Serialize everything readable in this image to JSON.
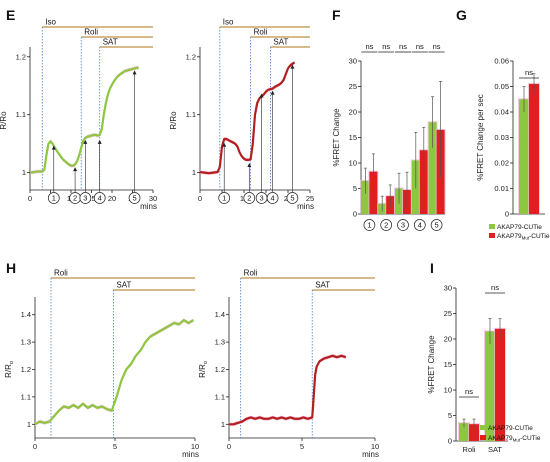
{
  "colors": {
    "akap79": "#8dc63f",
    "akap79_mut": "#b41e1e",
    "akap79_mut_bar": "#e02020",
    "treatment_line": "#c8a464",
    "dotted_line": "#4a7fd4",
    "sem_band": "#f4b6d8"
  },
  "panels": {
    "E": {
      "letter": "E"
    },
    "F": {
      "letter": "F"
    },
    "G": {
      "letter": "G"
    },
    "H": {
      "letter": "H"
    },
    "I": {
      "letter": "I"
    }
  },
  "legend": {
    "wt": "AKAP79-CUTie",
    "mut": "AKAP79",
    "mut_sub": "Mut",
    "mut_suffix": "-CUTie"
  },
  "chart_data": [
    {
      "id": "E-left",
      "type": "line",
      "xlabel": "mins",
      "ylabel": "R/Ro",
      "xlim": [
        0,
        30
      ],
      "ylim": [
        0.97,
        1.21
      ],
      "xticks": [
        0,
        5,
        10,
        15,
        20,
        25,
        30
      ],
      "yticks": [
        1,
        1.1,
        1.2
      ],
      "treatments": [
        {
          "label": "Iso",
          "start": 3
        },
        {
          "label": "Roli",
          "start": 12.5
        },
        {
          "label": "SAT",
          "start": 17
        }
      ],
      "phases": [
        {
          "label": "1",
          "x": 5.8,
          "y": 1.05
        },
        {
          "label": "2",
          "x": 11,
          "y": 1.013
        },
        {
          "label": "3",
          "x": 13.5,
          "y": 1.06
        },
        {
          "label": "4",
          "x": 17,
          "y": 1.06
        },
        {
          "label": "5",
          "x": 25.5,
          "y": 1.18
        }
      ],
      "series": [
        {
          "color": "#8dc63f",
          "x": [
            0,
            1,
            2,
            3,
            3.5,
            4,
            4.5,
            5,
            5.5,
            6,
            6.5,
            7,
            7.5,
            8,
            8.5,
            9,
            9.5,
            10,
            10.5,
            11,
            11.5,
            12,
            12.5,
            13,
            13.5,
            14,
            14.5,
            15,
            15.5,
            16,
            16.5,
            17,
            17.5,
            18,
            18.5,
            19,
            19.5,
            20,
            20.5,
            21,
            21.5,
            22,
            22.5,
            23,
            23.5,
            24,
            24.5,
            25,
            25.5,
            26,
            26.5
          ],
          "values": [
            1.0,
            1.001,
            1.002,
            1.002,
            1.005,
            1.03,
            1.05,
            1.054,
            1.05,
            1.044,
            1.038,
            1.033,
            1.028,
            1.023,
            1.02,
            1.017,
            1.014,
            1.012,
            1.012,
            1.014,
            1.02,
            1.03,
            1.043,
            1.055,
            1.06,
            1.062,
            1.063,
            1.064,
            1.065,
            1.065,
            1.064,
            1.065,
            1.075,
            1.1,
            1.12,
            1.135,
            1.145,
            1.152,
            1.158,
            1.163,
            1.167,
            1.17,
            1.172,
            1.175,
            1.176,
            1.177,
            1.178,
            1.179,
            1.18,
            1.181,
            1.181
          ]
        }
      ]
    },
    {
      "id": "E-right",
      "type": "line",
      "xlabel": "mins",
      "ylabel": "R/Ro",
      "xlim": [
        0,
        25
      ],
      "ylim": [
        0.97,
        1.21
      ],
      "xticks": [
        0,
        5,
        10,
        15,
        20,
        25
      ],
      "yticks": [
        1,
        1.1,
        1.2
      ],
      "treatments": [
        {
          "label": "Iso",
          "start": 4.5
        },
        {
          "label": "Roli",
          "start": 11.5
        },
        {
          "label": "SAT",
          "start": 16
        }
      ],
      "phases": [
        {
          "label": "1",
          "x": 5.5,
          "y": 1.055
        },
        {
          "label": "2",
          "x": 11.2,
          "y": 1.02
        },
        {
          "label": "3",
          "x": 14,
          "y": 1.14
        },
        {
          "label": "4",
          "x": 16.5,
          "y": 1.145
        },
        {
          "label": "5",
          "x": 21,
          "y": 1.19
        }
      ],
      "series": [
        {
          "color": "#b41e1e",
          "x": [
            0,
            1,
            2,
            3,
            4,
            4.5,
            5,
            5.5,
            6,
            6.5,
            7,
            7.5,
            8,
            8.5,
            9,
            9.5,
            10,
            10.5,
            11,
            11.5,
            12,
            12.5,
            13,
            13.5,
            14,
            14.5,
            15,
            15.5,
            16,
            16.5,
            17,
            17.5,
            18,
            18.5,
            19,
            19.5,
            20,
            20.5,
            21,
            21.5
          ],
          "values": [
            1.001,
            1.0,
            0.999,
            1.0,
            1.001,
            1.01,
            1.045,
            1.058,
            1.058,
            1.056,
            1.054,
            1.052,
            1.05,
            1.045,
            1.035,
            1.028,
            1.024,
            1.022,
            1.022,
            1.023,
            1.05,
            1.1,
            1.12,
            1.128,
            1.132,
            1.135,
            1.14,
            1.143,
            1.144,
            1.145,
            1.148,
            1.15,
            1.152,
            1.155,
            1.16,
            1.17,
            1.18,
            1.185,
            1.188,
            1.19
          ]
        }
      ]
    },
    {
      "id": "F",
      "type": "bar",
      "ylabel": "%FRET Change",
      "ylim": [
        0,
        30
      ],
      "yticks": [
        0,
        5,
        10,
        15,
        20,
        25,
        30
      ],
      "categories": [
        "1",
        "2",
        "3",
        "4",
        "5"
      ],
      "significance": [
        "ns",
        "ns",
        "ns",
        "ns",
        "ns"
      ],
      "series": [
        {
          "name": "AKAP79-CUTie",
          "color": "#8dc63f",
          "values": [
            6.5,
            2.0,
            5.0,
            10.5,
            18.0
          ],
          "errors": [
            2.5,
            1.5,
            3.0,
            5.5,
            5.0
          ]
        },
        {
          "name": "AKAP79Mut-CUTie",
          "color": "#e02020",
          "values": [
            8.3,
            3.5,
            4.7,
            12.5,
            16.5
          ],
          "errors": [
            3.5,
            2.2,
            3.5,
            4.5,
            9.5
          ]
        }
      ]
    },
    {
      "id": "G",
      "type": "bar",
      "ylabel": "%FRET Change per sec",
      "ylim": [
        0,
        0.06
      ],
      "yticks": [
        0,
        0.01,
        0.02,
        0.03,
        0.04,
        0.05,
        0.06
      ],
      "categories": [
        ""
      ],
      "significance": [
        "ns"
      ],
      "series": [
        {
          "name": "AKAP79-CUTie",
          "color": "#8dc63f",
          "values": [
            0.045
          ],
          "errors": [
            0.005
          ]
        },
        {
          "name": "AKAP79Mut-CUTie",
          "color": "#e02020",
          "values": [
            0.051
          ],
          "errors": [
            0.004
          ]
        }
      ]
    },
    {
      "id": "H-left",
      "type": "line",
      "xlabel": "mins",
      "ylabel": "R/R",
      "ylabel_sub": "o",
      "xlim": [
        0,
        10
      ],
      "ylim": [
        0.95,
        1.45
      ],
      "xticks": [
        0,
        5,
        10
      ],
      "yticks": [
        1,
        1.1,
        1.2,
        1.3,
        1.4
      ],
      "treatments": [
        {
          "label": "Roli",
          "start": 1
        },
        {
          "label": "SAT",
          "start": 4.9
        }
      ],
      "series": [
        {
          "color": "#8dc63f",
          "x": [
            0,
            0.3,
            0.6,
            0.9,
            1.2,
            1.5,
            1.8,
            2.1,
            2.4,
            2.7,
            3.0,
            3.3,
            3.6,
            3.9,
            4.2,
            4.5,
            4.8,
            5.1,
            5.4,
            5.7,
            6.0,
            6.3,
            6.6,
            6.9,
            7.2,
            7.5,
            7.8,
            8.1,
            8.4,
            8.7,
            9.0,
            9.3,
            9.6,
            9.9
          ],
          "values": [
            1.0,
            1.01,
            1.005,
            1.01,
            1.03,
            1.05,
            1.065,
            1.06,
            1.07,
            1.06,
            1.075,
            1.06,
            1.07,
            1.06,
            1.065,
            1.055,
            1.05,
            1.1,
            1.16,
            1.2,
            1.22,
            1.25,
            1.27,
            1.3,
            1.32,
            1.33,
            1.34,
            1.35,
            1.36,
            1.37,
            1.365,
            1.38,
            1.37,
            1.38
          ]
        }
      ]
    },
    {
      "id": "H-right",
      "type": "line",
      "xlabel": "mins",
      "ylabel": "R/R",
      "ylabel_sub": "o",
      "xlim": [
        0,
        10
      ],
      "ylim": [
        0.95,
        1.45
      ],
      "xticks": [
        0,
        5,
        10
      ],
      "yticks": [
        1,
        1.1,
        1.2,
        1.3,
        1.4
      ],
      "treatments": [
        {
          "label": "Roli",
          "start": 0.8
        },
        {
          "label": "SAT",
          "start": 5.7
        }
      ],
      "series": [
        {
          "color": "#b41e1e",
          "x": [
            0,
            0.3,
            0.6,
            0.9,
            1.2,
            1.5,
            1.8,
            2.1,
            2.4,
            2.7,
            3.0,
            3.3,
            3.6,
            3.9,
            4.2,
            4.5,
            4.8,
            5.1,
            5.4,
            5.7,
            5.8,
            5.9,
            6.0,
            6.2,
            6.5,
            6.8,
            7.1,
            7.4,
            7.7,
            8.0
          ],
          "values": [
            1.0,
            1.0,
            1.005,
            1.01,
            1.02,
            1.025,
            1.02,
            1.025,
            1.02,
            1.02,
            1.025,
            1.02,
            1.025,
            1.02,
            1.025,
            1.02,
            1.02,
            1.025,
            1.02,
            1.025,
            1.1,
            1.18,
            1.21,
            1.23,
            1.24,
            1.245,
            1.25,
            1.245,
            1.25,
            1.245
          ]
        }
      ]
    },
    {
      "id": "I",
      "type": "bar",
      "ylabel": "%FRET Change",
      "ylim": [
        0,
        30
      ],
      "yticks": [
        0,
        5,
        10,
        15,
        20,
        25,
        30
      ],
      "categories": [
        "Roli",
        "SAT"
      ],
      "significance": [
        "ns",
        "ns"
      ],
      "series": [
        {
          "name": "AKAP79-CUTie",
          "color": "#8dc63f",
          "values": [
            3.5,
            21.5
          ],
          "errors": [
            0.8,
            2.5
          ]
        },
        {
          "name": "AKAP79Mut-CUTie",
          "color": "#e02020",
          "values": [
            3.3,
            22.0
          ],
          "errors": [
            1.0,
            2.0
          ]
        }
      ]
    }
  ]
}
